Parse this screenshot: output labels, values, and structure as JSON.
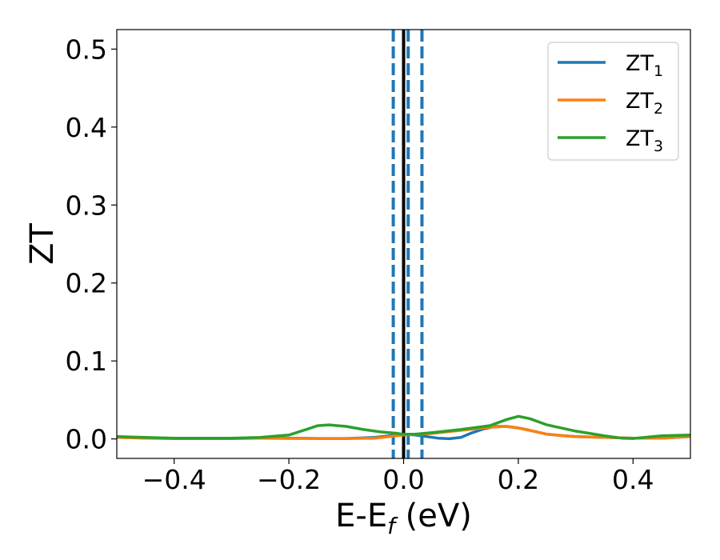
{
  "chart_data": {
    "type": "line",
    "title": "",
    "xlabel": {
      "base": "E-E",
      "sub": "f",
      "rest": " (eV)"
    },
    "ylabel": "ZT",
    "xlim": [
      -0.5,
      0.5
    ],
    "ylim": [
      -0.025,
      0.525
    ],
    "x_ticks": [
      -0.4,
      -0.2,
      0.0,
      0.2,
      0.4
    ],
    "x_tick_labels": [
      "−0.4",
      "−0.2",
      "0.0",
      "0.2",
      "0.4"
    ],
    "y_ticks": [
      0.0,
      0.1,
      0.2,
      0.3,
      0.4,
      0.5
    ],
    "y_tick_labels": [
      "0.0",
      "0.1",
      "0.2",
      "0.3",
      "0.4",
      "0.5"
    ],
    "legend_position": "top-right",
    "grid": false,
    "vlines": [
      {
        "x": 0.0,
        "color": "#000000",
        "style": "solid"
      },
      {
        "x": -0.018,
        "color": "#1f77b4",
        "style": "dashed"
      },
      {
        "x": 0.008,
        "color": "#1f77b4",
        "style": "dashed"
      },
      {
        "x": 0.032,
        "color": "#1f77b4",
        "style": "dashed"
      }
    ],
    "series": [
      {
        "name": "ZT",
        "sub": "1",
        "color": "#1f77b4",
        "x": [
          -0.5,
          -0.45,
          -0.4,
          -0.35,
          -0.3,
          -0.25,
          -0.2,
          -0.15,
          -0.1,
          -0.05,
          0.0,
          0.02,
          0.04,
          0.06,
          0.08,
          0.1,
          0.12,
          0.14,
          0.16,
          0.18,
          0.2,
          0.22,
          0.25,
          0.28,
          0.3,
          0.35,
          0.4,
          0.45,
          0.5
        ],
        "y": [
          0.003,
          0.001,
          0.0005,
          0.0005,
          0.0005,
          0.001,
          0.001,
          0.0005,
          0.0005,
          0.002,
          0.006,
          0.005,
          0.003,
          0.001,
          0.0002,
          0.002,
          0.008,
          0.013,
          0.016,
          0.016,
          0.014,
          0.011,
          0.006,
          0.004,
          0.003,
          0.002,
          0.001,
          0.001,
          0.003
        ]
      },
      {
        "name": "ZT",
        "sub": "2",
        "color": "#ff7f0e",
        "x": [
          -0.5,
          -0.45,
          -0.4,
          -0.35,
          -0.3,
          -0.25,
          -0.2,
          -0.15,
          -0.1,
          -0.05,
          0.0,
          0.05,
          0.1,
          0.15,
          0.18,
          0.2,
          0.22,
          0.25,
          0.28,
          0.3,
          0.35,
          0.4,
          0.45,
          0.5
        ],
        "y": [
          0.002,
          0.001,
          0.001,
          0.001,
          0.001,
          0.001,
          0.0005,
          0.0005,
          0.0005,
          0.001,
          0.005,
          0.007,
          0.011,
          0.015,
          0.016,
          0.014,
          0.011,
          0.006,
          0.004,
          0.003,
          0.002,
          0.001,
          0.001,
          0.003
        ]
      },
      {
        "name": "ZT",
        "sub": "3",
        "color": "#2ca02c",
        "x": [
          -0.5,
          -0.45,
          -0.4,
          -0.35,
          -0.3,
          -0.25,
          -0.2,
          -0.17,
          -0.15,
          -0.13,
          -0.1,
          -0.07,
          -0.04,
          -0.01,
          0.0,
          0.02,
          0.05,
          0.1,
          0.15,
          0.18,
          0.2,
          0.22,
          0.25,
          0.3,
          0.35,
          0.38,
          0.4,
          0.42,
          0.45,
          0.5
        ],
        "y": [
          0.003,
          0.002,
          0.001,
          0.001,
          0.001,
          0.002,
          0.005,
          0.012,
          0.017,
          0.018,
          0.016,
          0.012,
          0.009,
          0.007,
          0.006,
          0.006,
          0.008,
          0.012,
          0.017,
          0.025,
          0.029,
          0.026,
          0.018,
          0.01,
          0.004,
          0.001,
          0.0005,
          0.002,
          0.004,
          0.005
        ]
      }
    ]
  }
}
